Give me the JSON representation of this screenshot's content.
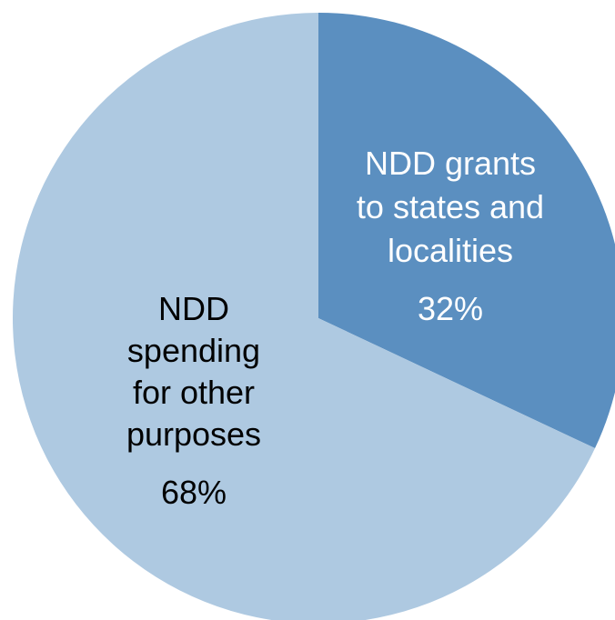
{
  "chart_data": {
    "type": "pie",
    "categories": [
      "NDD grants to states and localities",
      "NDD spending for other purposes"
    ],
    "values": [
      32,
      68
    ],
    "value_labels": [
      "32%",
      "68%"
    ],
    "label_lines": [
      [
        "NDD grants",
        "to states and",
        "localities"
      ],
      [
        "NDD",
        "spending",
        "for other",
        "purposes"
      ]
    ],
    "colors": [
      "#5b8fc0",
      "#aec9e1"
    ],
    "start_angle": "12 o'clock, clockwise",
    "title": "",
    "legend": "none"
  }
}
